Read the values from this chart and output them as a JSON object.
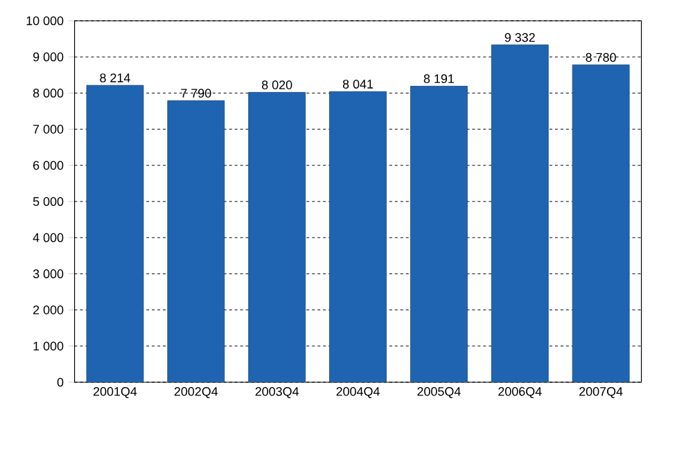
{
  "chart_data": {
    "type": "bar",
    "categories": [
      "2001Q4",
      "2002Q4",
      "2003Q4",
      "2004Q4",
      "2005Q4",
      "2006Q4",
      "2007Q4"
    ],
    "values": [
      8214,
      7790,
      8020,
      8041,
      8191,
      9332,
      8780
    ],
    "value_labels": [
      "8 214",
      "7 790",
      "8 020",
      "8 041",
      "8 191",
      "9 332",
      "8 780"
    ],
    "color": "#1f64b0",
    "ylim": [
      0,
      10000
    ],
    "yticks": [
      0,
      {
        "value": 1000,
        "label": "1 000"
      },
      {
        "value": 2000,
        "label": "2 000"
      },
      {
        "value": 3000,
        "label": "3 000"
      },
      {
        "value": 4000,
        "label": "4 000"
      },
      {
        "value": 5000,
        "label": "5 000"
      },
      {
        "value": 6000,
        "label": "6 000"
      },
      {
        "value": 7000,
        "label": "7 000"
      },
      {
        "value": 8000,
        "label": "8 000"
      },
      {
        "value": 9000,
        "label": "9 000"
      },
      {
        "value": 10000,
        "label": "10 000"
      }
    ],
    "grid": "y"
  }
}
